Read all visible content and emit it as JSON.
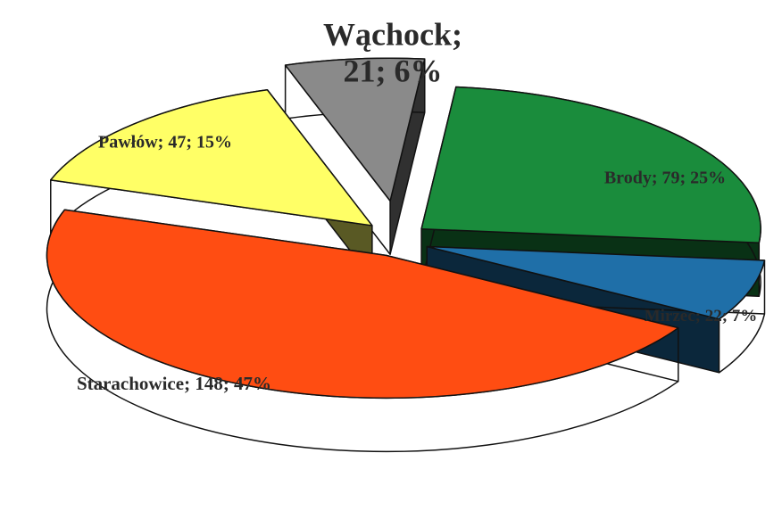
{
  "chart_data": {
    "type": "pie",
    "values": [
      21,
      79,
      22,
      148,
      47
    ],
    "value_labels": [
      "Wąchock; 21; 6%",
      "Brody; 79; 25%",
      "Mirzec; 22; 7%",
      "Starachowice; 148; 47%",
      "Pawłów; 47; 15%"
    ],
    "colors": [
      "#8a8a8a",
      "#1a8c3c",
      "#1f6fa8",
      "#ff4d12",
      "#ffff66"
    ]
  }
}
